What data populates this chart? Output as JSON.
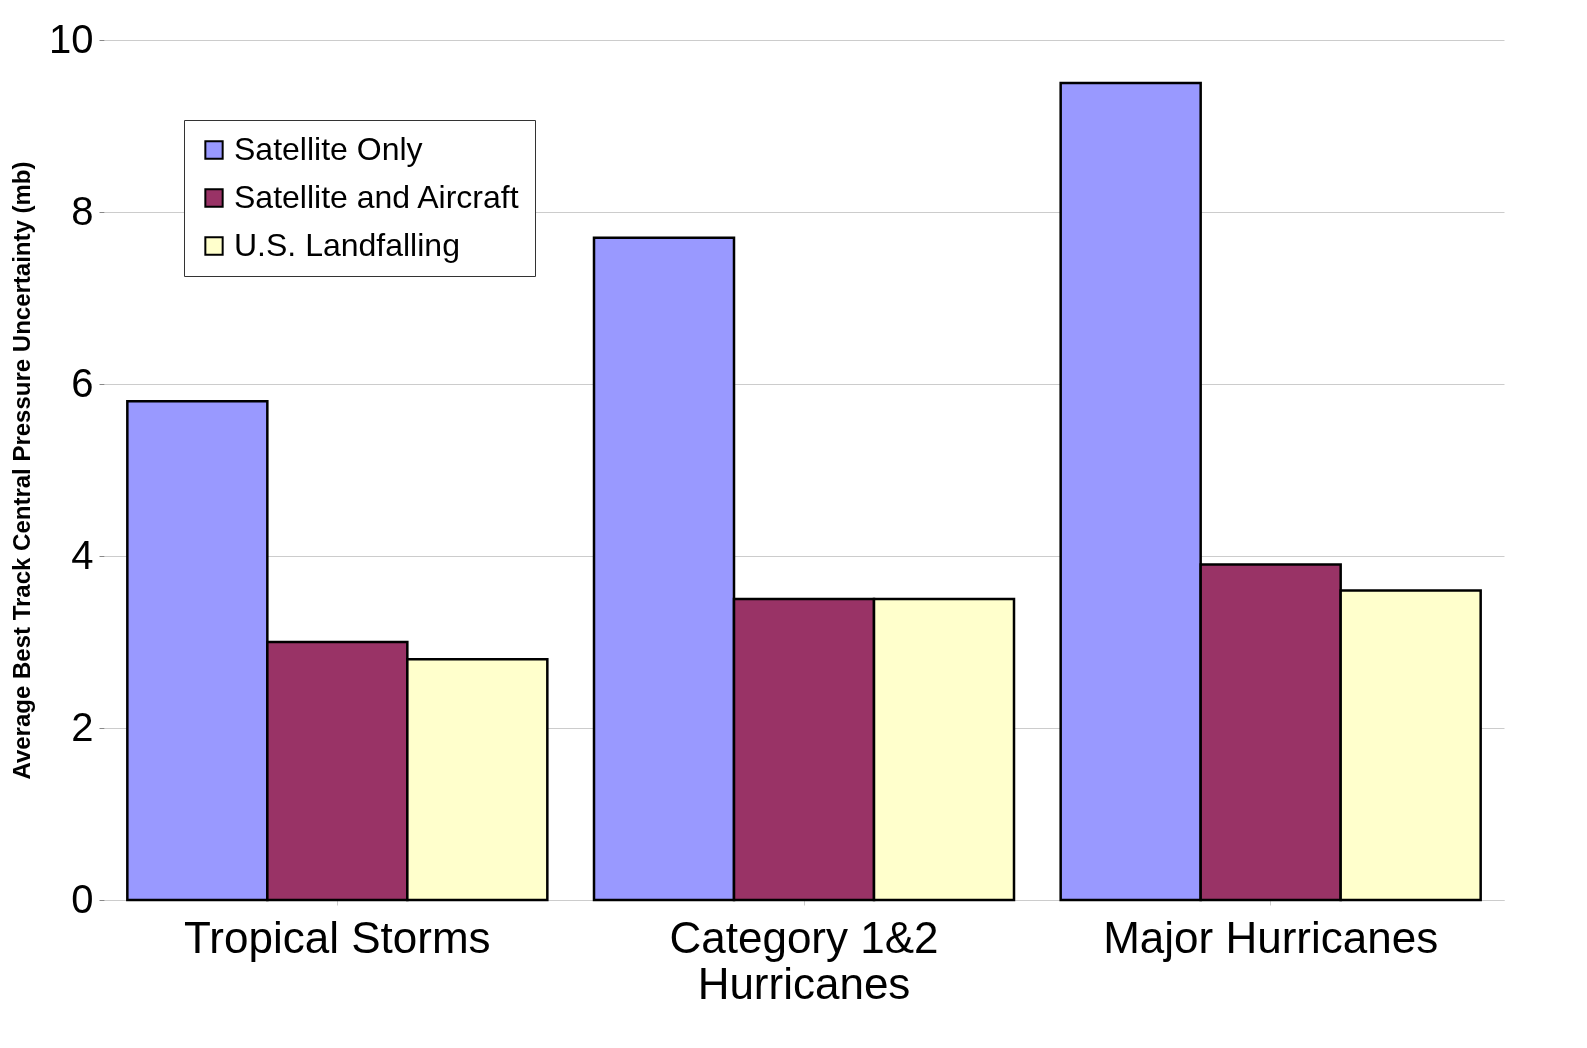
{
  "chart_data": {
    "type": "bar",
    "ylabel": "Average Best Track Central Pressure Uncertainty (mb)",
    "categories": [
      "Tropical Storms",
      "Category 1&2 Hurricanes",
      "Major Hurricanes"
    ],
    "series": [
      {
        "name": "Satellite Only",
        "color": "#9999ff",
        "values": [
          5.8,
          7.7,
          9.5
        ]
      },
      {
        "name": "Satellite and Aircraft",
        "color": "#993366",
        "values": [
          3.0,
          3.5,
          3.9
        ]
      },
      {
        "name": "U.S. Landfalling",
        "color": "#ffffcc",
        "values": [
          2.8,
          3.5,
          3.6
        ]
      }
    ],
    "ylim": [
      0,
      10
    ],
    "yticks": [
      0,
      2,
      4,
      6,
      8,
      10
    ],
    "grid": "y",
    "legend": "top left"
  }
}
